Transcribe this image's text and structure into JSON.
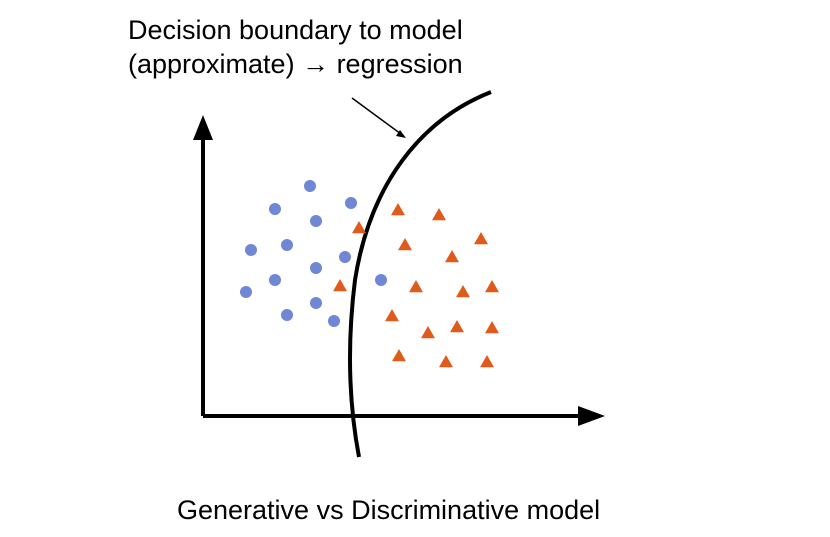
{
  "annotation": {
    "line1": "Decision boundary to model",
    "line2": "(approximate) → regression"
  },
  "caption": "Generative vs Discriminative model",
  "colors": {
    "axis": "#000000",
    "boundary": "#000000",
    "circle_class": "#6f87d4",
    "triangle_class": "#e05a1b"
  },
  "shapes": {
    "class_a_marker": "circle",
    "class_b_marker": "triangle"
  }
}
